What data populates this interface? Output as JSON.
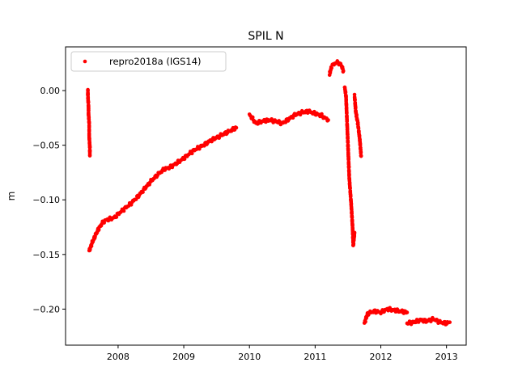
{
  "chart_data": {
    "type": "scatter",
    "title": "SPIL N",
    "xlabel": "",
    "ylabel": "m",
    "xlim": [
      2007.2,
      2013.3
    ],
    "ylim": [
      -0.233,
      0.04
    ],
    "xticks": [
      2008,
      2009,
      2010,
      2011,
      2012,
      2013
    ],
    "xtick_labels": [
      "2008",
      "2009",
      "2010",
      "2011",
      "2012",
      "2013"
    ],
    "yticks": [
      0.0,
      -0.05,
      -0.1,
      -0.15,
      -0.2
    ],
    "ytick_labels": [
      "0.00",
      "−0.05",
      "−0.10",
      "−0.15",
      "−0.20"
    ],
    "grid": false,
    "legend_position": "upper-left",
    "series": [
      {
        "name": "repro2018a (IGS14)",
        "color": "#ff0000",
        "marker": "dot",
        "segments": [
          {
            "x": [
              2007.54,
              2007.54,
              2007.55,
              2007.55,
              2007.56,
              2007.56,
              2007.57,
              2007.57
            ],
            "y": [
              0.0,
              -0.005,
              -0.015,
              -0.022,
              -0.03,
              -0.042,
              -0.052,
              -0.059
            ]
          },
          {
            "x": [
              2007.56,
              2007.6,
              2007.65,
              2007.7,
              2007.75,
              2007.8,
              2007.85,
              2007.9,
              2007.95,
              2008.0,
              2008.1,
              2008.2,
              2008.3,
              2008.4,
              2008.5,
              2008.6,
              2008.7,
              2008.8,
              2008.9,
              2009.0,
              2009.1,
              2009.2,
              2009.3,
              2009.4,
              2009.5,
              2009.6,
              2009.7,
              2009.8
            ],
            "y": [
              -0.147,
              -0.14,
              -0.133,
              -0.127,
              -0.122,
              -0.119,
              -0.118,
              -0.117,
              -0.116,
              -0.113,
              -0.108,
              -0.103,
              -0.097,
              -0.09,
              -0.083,
              -0.077,
              -0.072,
              -0.07,
              -0.066,
              -0.062,
              -0.057,
              -0.053,
              -0.05,
              -0.046,
              -0.043,
              -0.04,
              -0.037,
              -0.034
            ]
          },
          {
            "x": [
              2010.0,
              2010.1,
              2010.2,
              2010.3,
              2010.4,
              2010.5,
              2010.6,
              2010.7,
              2010.8,
              2010.9,
              2011.0,
              2011.1,
              2011.2
            ],
            "y": [
              -0.022,
              -0.03,
              -0.028,
              -0.027,
              -0.028,
              -0.03,
              -0.026,
              -0.022,
              -0.02,
              -0.019,
              -0.021,
              -0.023,
              -0.027
            ]
          },
          {
            "x": [
              2011.22,
              2011.25,
              2011.3,
              2011.35,
              2011.4,
              2011.43
            ],
            "y": [
              0.015,
              0.022,
              0.025,
              0.026,
              0.023,
              0.018
            ]
          },
          {
            "x": [
              2011.45,
              2011.47,
              2011.48,
              2011.5,
              2011.52,
              2011.55,
              2011.57,
              2011.58,
              2011.6
            ],
            "y": [
              0.003,
              -0.005,
              -0.02,
              -0.05,
              -0.08,
              -0.105,
              -0.125,
              -0.142,
              -0.13
            ]
          },
          {
            "x": [
              2011.6,
              2011.62,
              2011.65,
              2011.68,
              2011.7
            ],
            "y": [
              -0.005,
              -0.02,
              -0.03,
              -0.045,
              -0.06
            ]
          },
          {
            "x": [
              2011.75,
              2011.8,
              2011.9,
              2012.0,
              2012.1,
              2012.2,
              2012.3,
              2012.4
            ],
            "y": [
              -0.213,
              -0.204,
              -0.202,
              -0.203,
              -0.2,
              -0.201,
              -0.202,
              -0.203
            ]
          },
          {
            "x": [
              2012.4,
              2012.5,
              2012.6,
              2012.7,
              2012.8,
              2012.9,
              2013.0,
              2013.05
            ],
            "y": [
              -0.213,
              -0.212,
              -0.21,
              -0.211,
              -0.209,
              -0.212,
              -0.213,
              -0.212
            ]
          }
        ]
      }
    ]
  }
}
